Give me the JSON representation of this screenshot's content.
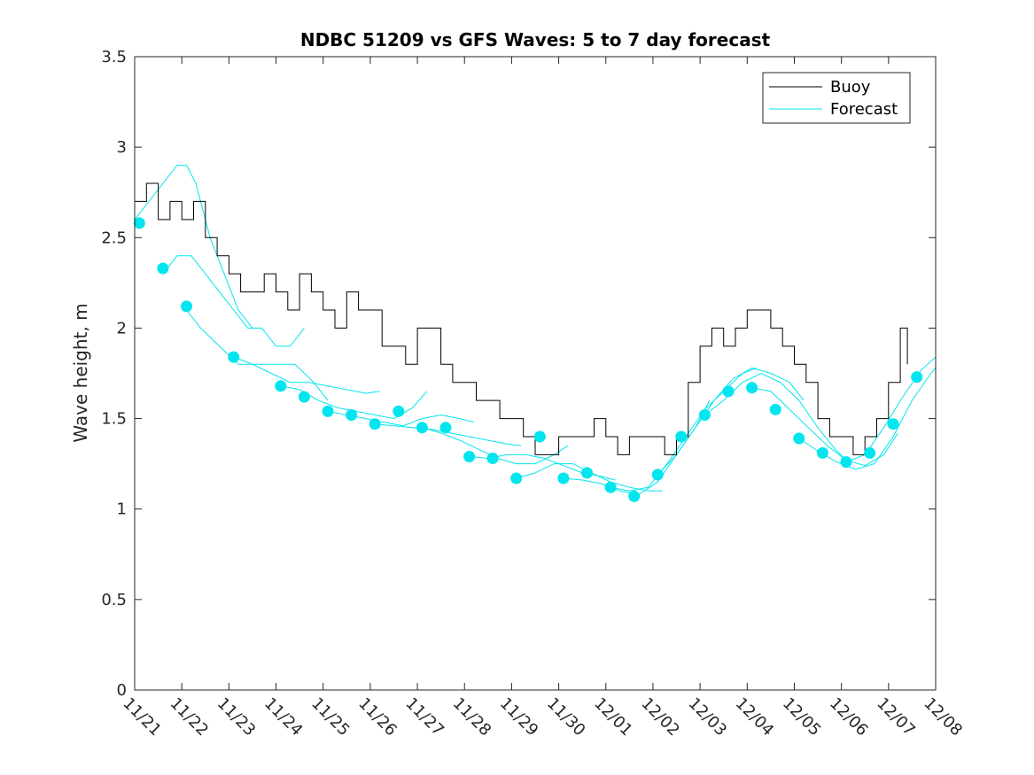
{
  "chart_data": {
    "type": "line",
    "title": "NDBC 51209 vs GFS Waves: 5 to 7 day forecast",
    "xlabel": "",
    "ylabel": "Wave height, m",
    "x_unit": "days since 11/21 00:00",
    "xlim": [
      0,
      17
    ],
    "ylim": [
      0,
      3.5
    ],
    "yticks": [
      0,
      0.5,
      1,
      1.5,
      2,
      2.5,
      3,
      3.5
    ],
    "ytick_labels": [
      "0",
      "0.5",
      "1",
      "1.5",
      "2",
      "2.5",
      "3",
      "3.5"
    ],
    "xticks": [
      0,
      1,
      2,
      3,
      4,
      5,
      6,
      7,
      8,
      9,
      10,
      11,
      12,
      13,
      14,
      15,
      16,
      17
    ],
    "xtick_labels": [
      "11/21",
      "11/22",
      "11/23",
      "11/24",
      "11/25",
      "11/26",
      "11/27",
      "11/28",
      "11/29",
      "11/30",
      "12/01",
      "12/02",
      "12/03",
      "12/04",
      "12/05",
      "12/06",
      "12/07",
      "12/08"
    ],
    "grid": false,
    "legend_position": "top-right",
    "colors": {
      "buoy": "#000000",
      "forecast": "#00e5ee",
      "markers": "#00e5ee",
      "axes": "#262626"
    },
    "series": [
      {
        "name": "Buoy",
        "x": [
          0.0,
          0.25,
          0.5,
          0.75,
          1.0,
          1.25,
          1.5,
          1.75,
          2.0,
          2.25,
          2.5,
          2.75,
          3.0,
          3.25,
          3.5,
          3.75,
          4.0,
          4.25,
          4.5,
          4.75,
          5.0,
          5.25,
          5.5,
          5.75,
          6.0,
          6.25,
          6.5,
          6.75,
          7.0,
          7.25,
          7.5,
          7.75,
          8.0,
          8.25,
          8.5,
          8.75,
          9.0,
          9.25,
          9.5,
          9.75,
          10.0,
          10.25,
          10.5,
          10.75,
          11.0,
          11.25,
          11.5,
          11.75,
          12.0,
          12.25,
          12.5,
          12.75,
          13.0,
          13.25,
          13.5,
          13.75,
          14.0,
          14.25,
          14.5,
          14.75,
          15.0,
          15.25,
          15.5,
          15.75,
          16.0,
          16.25,
          16.4
        ],
        "values": [
          2.7,
          2.8,
          2.6,
          2.7,
          2.6,
          2.7,
          2.5,
          2.4,
          2.3,
          2.2,
          2.2,
          2.3,
          2.2,
          2.1,
          2.3,
          2.2,
          2.1,
          2.0,
          2.2,
          2.1,
          2.1,
          1.9,
          1.9,
          1.8,
          2.0,
          2.0,
          1.8,
          1.7,
          1.7,
          1.6,
          1.6,
          1.5,
          1.5,
          1.4,
          1.3,
          1.3,
          1.4,
          1.4,
          1.4,
          1.5,
          1.4,
          1.3,
          1.4,
          1.4,
          1.4,
          1.3,
          1.4,
          1.7,
          1.9,
          2.0,
          1.9,
          2.0,
          2.1,
          2.1,
          2.0,
          1.9,
          1.8,
          1.7,
          1.5,
          1.4,
          1.4,
          1.3,
          1.4,
          1.5,
          1.7,
          2.0,
          1.8
        ]
      }
    ],
    "forecast_runs": [
      {
        "x": [
          0.0,
          0.3,
          0.6,
          0.9,
          1.1,
          1.3,
          1.6,
          1.9,
          2.2,
          2.5
        ],
        "values": [
          2.6,
          2.7,
          2.8,
          2.9,
          2.9,
          2.8,
          2.5,
          2.3,
          2.1,
          2.0
        ]
      },
      {
        "x": [
          0.6,
          0.9,
          1.2,
          1.5,
          1.8,
          2.1,
          2.4,
          2.7,
          3.0,
          3.3,
          3.6
        ],
        "values": [
          2.3,
          2.4,
          2.4,
          2.3,
          2.2,
          2.1,
          2.0,
          2.0,
          1.9,
          1.9,
          2.0
        ]
      },
      {
        "x": [
          1.1,
          1.4,
          1.8,
          2.2,
          2.6,
          3.0,
          3.4,
          3.8,
          4.1
        ],
        "values": [
          2.1,
          2.0,
          1.9,
          1.8,
          1.8,
          1.8,
          1.8,
          1.7,
          1.6
        ]
      },
      {
        "x": [
          2.1,
          2.5,
          2.9,
          3.3,
          3.7,
          4.1,
          4.5,
          4.9,
          5.2
        ],
        "values": [
          1.84,
          1.8,
          1.75,
          1.7,
          1.7,
          1.68,
          1.66,
          1.64,
          1.65
        ]
      },
      {
        "x": [
          3.1,
          3.5,
          3.9,
          4.3,
          4.7,
          5.1,
          5.5,
          5.9,
          6.2
        ],
        "values": [
          1.68,
          1.66,
          1.6,
          1.56,
          1.54,
          1.52,
          1.5,
          1.56,
          1.65
        ]
      },
      {
        "x": [
          4.1,
          4.5,
          4.9,
          5.3,
          5.7,
          6.1,
          6.5,
          6.9,
          7.2
        ],
        "values": [
          1.54,
          1.52,
          1.5,
          1.48,
          1.46,
          1.5,
          1.52,
          1.5,
          1.48
        ]
      },
      {
        "x": [
          5.1,
          5.5,
          5.9,
          6.3,
          6.7,
          7.1,
          7.5,
          7.9,
          8.2
        ],
        "values": [
          1.47,
          1.46,
          1.45,
          1.44,
          1.42,
          1.4,
          1.38,
          1.36,
          1.35
        ]
      },
      {
        "x": [
          6.1,
          6.5,
          6.9,
          7.3,
          7.7,
          8.1,
          8.5,
          8.9,
          9.2
        ],
        "values": [
          1.45,
          1.42,
          1.38,
          1.33,
          1.28,
          1.25,
          1.25,
          1.3,
          1.35
        ]
      },
      {
        "x": [
          7.1,
          7.5,
          7.9,
          8.3,
          8.7,
          9.1,
          9.5,
          9.9,
          10.2
        ],
        "values": [
          1.29,
          1.28,
          1.3,
          1.3,
          1.28,
          1.24,
          1.2,
          1.18,
          1.16
        ]
      },
      {
        "x": [
          8.1,
          8.5,
          8.9,
          9.3,
          9.7,
          10.1,
          10.5,
          10.9,
          11.2
        ],
        "values": [
          1.17,
          1.2,
          1.25,
          1.25,
          1.2,
          1.15,
          1.12,
          1.1,
          1.1
        ]
      },
      {
        "x": [
          9.1,
          9.5,
          9.9,
          10.3,
          10.7,
          11.1,
          11.5,
          11.9,
          12.2
        ],
        "values": [
          1.17,
          1.16,
          1.14,
          1.1,
          1.08,
          1.15,
          1.3,
          1.45,
          1.6
        ]
      },
      {
        "x": [
          10.1,
          10.5,
          10.9,
          11.3,
          11.7,
          12.1,
          12.5,
          12.9,
          13.2
        ],
        "values": [
          1.12,
          1.1,
          1.12,
          1.25,
          1.4,
          1.55,
          1.65,
          1.75,
          1.78
        ]
      },
      {
        "x": [
          11.1,
          11.5,
          11.9,
          12.3,
          12.7,
          13.1,
          13.5,
          13.9,
          14.2
        ],
        "values": [
          1.19,
          1.3,
          1.45,
          1.6,
          1.72,
          1.78,
          1.75,
          1.7,
          1.6
        ]
      },
      {
        "x": [
          12.1,
          12.5,
          12.9,
          13.3,
          13.7,
          14.1,
          14.5,
          14.9,
          15.2
        ],
        "values": [
          1.52,
          1.6,
          1.7,
          1.75,
          1.7,
          1.6,
          1.45,
          1.32,
          1.25
        ]
      },
      {
        "x": [
          13.1,
          13.5,
          13.9,
          14.3,
          14.7,
          15.1,
          15.5,
          15.9,
          16.2
        ],
        "values": [
          1.67,
          1.65,
          1.55,
          1.45,
          1.35,
          1.27,
          1.24,
          1.3,
          1.42
        ]
      },
      {
        "x": [
          14.1,
          14.5,
          14.9,
          15.3,
          15.7,
          16.1,
          16.5,
          16.9,
          17.0
        ],
        "values": [
          1.39,
          1.32,
          1.26,
          1.22,
          1.25,
          1.4,
          1.6,
          1.75,
          1.78
        ]
      },
      {
        "x": [
          15.1,
          15.5,
          15.9,
          16.3,
          16.7,
          17.0
        ],
        "values": [
          1.26,
          1.3,
          1.45,
          1.62,
          1.77,
          1.84
        ]
      }
    ],
    "forecast_markers": {
      "x": [
        0.1,
        0.6,
        1.1,
        2.1,
        3.1,
        3.6,
        4.1,
        4.6,
        5.1,
        5.6,
        6.1,
        6.6,
        7.1,
        7.6,
        8.1,
        8.6,
        9.1,
        9.6,
        10.1,
        10.6,
        11.1,
        11.6,
        12.1,
        12.6,
        13.1,
        13.6,
        14.1,
        14.6,
        15.1,
        15.6,
        16.1,
        16.6
      ],
      "values": [
        2.58,
        2.33,
        2.12,
        1.84,
        1.68,
        1.62,
        1.54,
        1.52,
        1.47,
        1.54,
        1.45,
        1.45,
        1.29,
        1.28,
        1.17,
        1.4,
        1.17,
        1.2,
        1.12,
        1.07,
        1.19,
        1.4,
        1.52,
        1.65,
        1.67,
        1.55,
        1.39,
        1.31,
        1.26,
        1.31,
        1.47,
        1.73
      ]
    },
    "legend": [
      {
        "label": "Buoy",
        "color": "#000000"
      },
      {
        "label": "Forecast",
        "color": "#00e5ee"
      }
    ]
  }
}
